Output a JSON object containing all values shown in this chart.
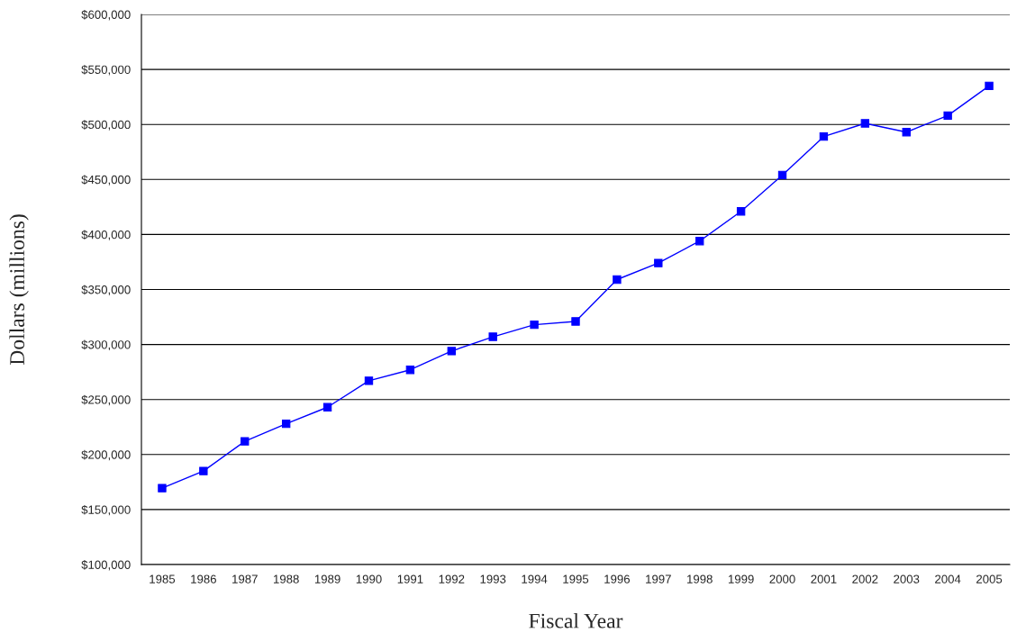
{
  "chart_data": {
    "type": "line",
    "xlabel": "Fiscal Year",
    "ylabel": "Dollars (millions)",
    "categories": [
      "1985",
      "1986",
      "1987",
      "1988",
      "1989",
      "1990",
      "1991",
      "1992",
      "1993",
      "1994",
      "1995",
      "1996",
      "1997",
      "1998",
      "1999",
      "2000",
      "2001",
      "2002",
      "2003",
      "2004",
      "2005"
    ],
    "series": [
      {
        "color": "#0000ff",
        "values": [
          169500,
          185000,
          212000,
          228000,
          243000,
          267000,
          277000,
          294000,
          307000,
          318000,
          321000,
          359000,
          374000,
          394000,
          421000,
          454000,
          489000,
          501000,
          493000,
          508000,
          535000
        ]
      }
    ],
    "ylim": [
      100000,
      600000
    ],
    "yticks": [
      {
        "value": 100000,
        "label": "$100,000"
      },
      {
        "value": 150000,
        "label": "$150,000"
      },
      {
        "value": 200000,
        "label": "$200,000"
      },
      {
        "value": 250000,
        "label": "$250,000"
      },
      {
        "value": 300000,
        "label": "$300,000"
      },
      {
        "value": 350000,
        "label": "$350,000"
      },
      {
        "value": 400000,
        "label": "$400,000"
      },
      {
        "value": 450000,
        "label": "$450,000"
      },
      {
        "value": 500000,
        "label": "$500,000"
      },
      {
        "value": 550000,
        "label": "$550,000"
      },
      {
        "value": 600000,
        "label": "$600,000"
      }
    ],
    "grid": "y",
    "marker": "square",
    "line_style": "solid",
    "legend": false
  }
}
